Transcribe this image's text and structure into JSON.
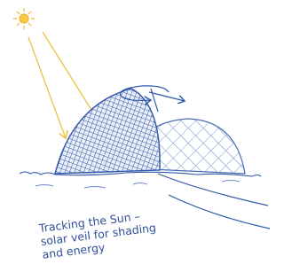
{
  "caption": {
    "lines": [
      "Tracking the Sun –",
      "solar veil for shading",
      "and energy"
    ]
  }
}
